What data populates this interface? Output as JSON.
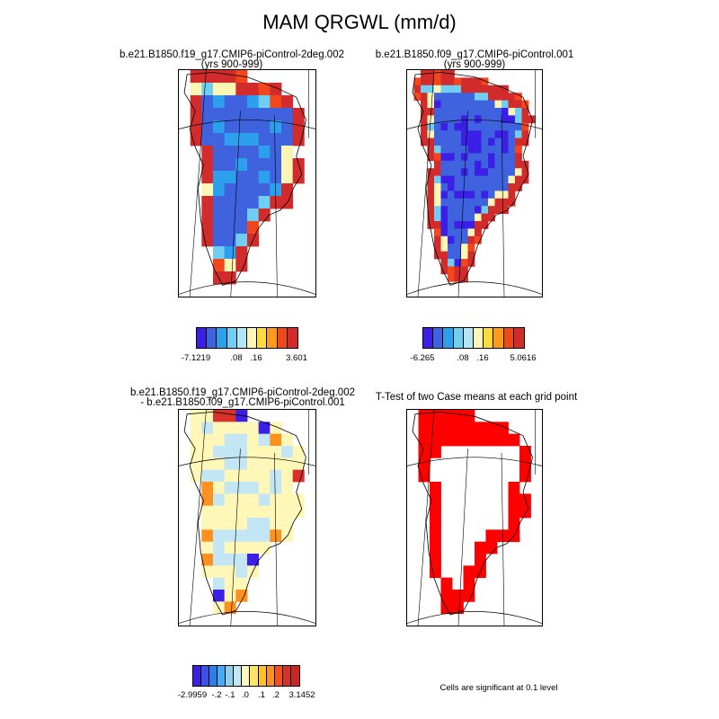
{
  "title": "MAM QRGWL (mm/d)",
  "panels": [
    {
      "id": "case1",
      "title_line1": "b.e21.B1850.f19_g17.CMIP6-piControl-2deg.002",
      "title_line2": "(yrs 900-999)",
      "colorbar": {
        "colors": [
          "#3b1fe6",
          "#3f63de",
          "#2ca0ec",
          "#6fcef1",
          "#b4e5f4",
          "#fdf5b3",
          "#fddc3c",
          "#fd9a1e",
          "#f2461c",
          "#d12b2b"
        ],
        "tick_labels": [
          "-7.1219",
          ".08",
          ".16",
          "3.601"
        ]
      }
    },
    {
      "id": "case2",
      "title_line1": "b.e21.B1850.f09_g17.CMIP6-piControl.001",
      "title_line2": "(yrs 900-999)",
      "colorbar": {
        "colors": [
          "#3b1fe6",
          "#3f63de",
          "#2ca0ec",
          "#6fcef1",
          "#b4e5f4",
          "#fdf5b3",
          "#fddc3c",
          "#fd9a1e",
          "#f2461c",
          "#d12b2b"
        ],
        "tick_labels": [
          "-6.265",
          ".08",
          ".16",
          "5.0616"
        ]
      }
    },
    {
      "id": "difference",
      "title_line1": "b.e21.B1850.f19_g17.CMIP6-piControl-2deg.002",
      "title_line2": "- b.e21.B1850.f09_g17.CMIP6-piControl.001",
      "colorbar": {
        "colors": [
          "#3b1fe6",
          "#3f50e4",
          "#2c7fe9",
          "#49abf2",
          "#8ccff2",
          "#c2e6f3",
          "#fff7b8",
          "#fde568",
          "#fdc22a",
          "#fd911e",
          "#f2501d",
          "#d8302a",
          "#c62727"
        ],
        "tick_labels": [
          "-2.9959",
          "-.2",
          "-.1",
          ".0",
          ".1",
          ".2",
          "3.1452"
        ]
      }
    },
    {
      "id": "ttest",
      "title_line1": "T-Test of two Case means at each grid point",
      "note": "Cells are significant at 0.1 level",
      "colors": {
        "significant": "#ff0000"
      }
    }
  ]
}
